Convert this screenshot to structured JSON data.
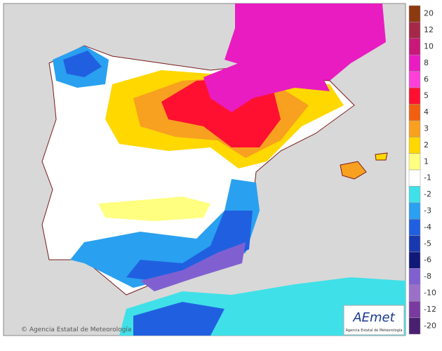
{
  "map": {
    "credit": "Agencia Estatal de Meteorología",
    "logo": {
      "text": "AEmet",
      "subtitle": "Agencia Estatal de Meteorología"
    },
    "legend": [
      {
        "label": "20",
        "color": "#8c3a10"
      },
      {
        "label": "12",
        "color": "#a62848"
      },
      {
        "label": "10",
        "color": "#c8187a"
      },
      {
        "label": "8",
        "color": "#e81cc0"
      },
      {
        "label": "6",
        "color": "#ff40d8"
      },
      {
        "label": "5",
        "color": "#ff1030"
      },
      {
        "label": "4",
        "color": "#f06010"
      },
      {
        "label": "3",
        "color": "#f8a020"
      },
      {
        "label": "2",
        "color": "#ffd800"
      },
      {
        "label": "1",
        "color": "#ffff80"
      },
      {
        "label": "-1",
        "color": "#ffffff"
      },
      {
        "label": "-2",
        "color": "#40e0e8"
      },
      {
        "label": "-3",
        "color": "#2aa0f0"
      },
      {
        "label": "-4",
        "color": "#2060e0"
      },
      {
        "label": "-5",
        "color": "#1838b0"
      },
      {
        "label": "-6",
        "color": "#101878"
      },
      {
        "label": "-8",
        "color": "#8060d0"
      },
      {
        "label": "-10",
        "color": "#9a70c8"
      },
      {
        "label": "-12",
        "color": "#7a3aa0"
      },
      {
        "label": "-20",
        "color": "#4a2070"
      }
    ]
  }
}
